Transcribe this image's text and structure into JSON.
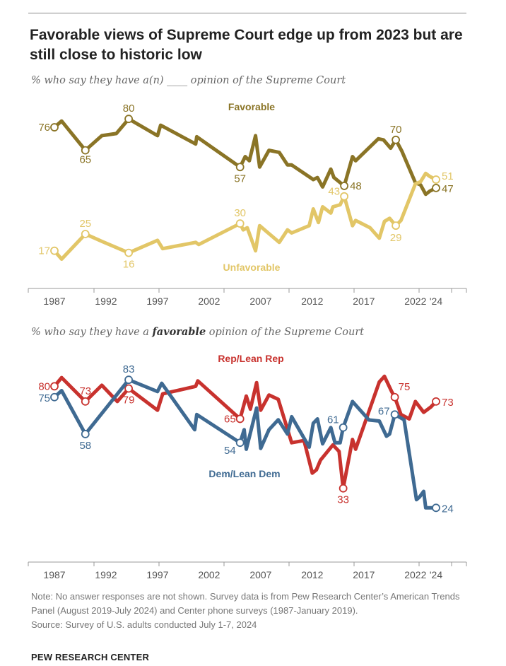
{
  "title": "Favorable views of Supreme Court edge up from 2023 but are still close to historic low",
  "footer": {
    "note": "Note: No answer responses are not shown. Survey data is from Pew Research Center’s American Trends Panel (August 2019-July 2024) and Center phone surveys (1987-January 2019).",
    "source": "Source: Survey of U.S. adults conducted July 1-7, 2024",
    "brand": "PEW RESEARCH CENTER"
  },
  "chart_data": [
    {
      "type": "line",
      "subtitle": "% who say they have a(n) ____ opinion of the Supreme Court",
      "x_ticks": [
        "1987",
        "1992",
        "1997",
        "2002",
        "2007",
        "2012",
        "2017",
        "2022",
        "'24"
      ],
      "x_tick_years": [
        1987,
        1992,
        1997,
        2002,
        2007,
        2012,
        2017,
        2022,
        2024
      ],
      "xlim": [
        1987,
        2024
      ],
      "ylim": [
        0,
        82
      ],
      "grid": false,
      "series": [
        {
          "name": "Favorable",
          "color": "#8a7426",
          "x": [
            1987,
            1987.7,
            1990,
            1991.6,
            1993,
            1994.2,
            1997,
            1997.3,
            2000.7,
            2000.8,
            2005,
            2005.3,
            2005.5,
            2005.9,
            2006.5,
            2006.9,
            2007.8,
            2008.8,
            2009.6,
            2010,
            2012.1,
            2012.5,
            2013,
            2013.8,
            2014.1,
            2015.1,
            2015.9,
            2016.2,
            2018.4,
            2018.9,
            2019.6,
            2020.1,
            2020.7,
            2022,
            2022.5,
            2023,
            2023.4,
            2024
          ],
          "y": [
            76,
            79,
            65,
            72,
            73,
            80,
            72,
            77,
            68,
            71.5,
            57,
            60,
            62,
            60,
            72,
            57,
            65,
            64,
            58,
            58,
            51,
            52,
            47.5,
            56,
            52,
            48,
            62,
            60,
            70.5,
            70,
            66,
            70,
            64.5,
            49.5,
            48.5,
            44,
            45.5,
            47
          ],
          "labels": [
            {
              "i": 0,
              "text": "76"
            },
            {
              "i": 2,
              "text": "65"
            },
            {
              "i": 5,
              "text": "80"
            },
            {
              "i": 10,
              "text": "57"
            },
            {
              "i": 25,
              "text": "48"
            },
            {
              "i": 31,
              "text": "70"
            },
            {
              "i": 37,
              "text": "47"
            }
          ]
        },
        {
          "name": "Unfavorable",
          "color": "#e2c667",
          "x": [
            1987,
            1987.7,
            1990,
            1991.6,
            1994.2,
            1997,
            1997.5,
            2000.7,
            2001,
            2005,
            2005.3,
            2005.7,
            2006.5,
            2006.9,
            2008.8,
            2009.6,
            2010,
            2011.7,
            2012.1,
            2012.6,
            2013,
            2013.8,
            2014,
            2014.7,
            2015.1,
            2015.9,
            2016.2,
            2017.6,
            2018.5,
            2019,
            2019.5,
            2020.1,
            2020.6,
            2022,
            2022.5,
            2023,
            2023.4,
            2024
          ],
          "y": [
            17,
            13,
            25,
            21.5,
            16,
            22,
            18,
            21,
            20,
            30,
            27,
            28,
            17,
            29,
            21,
            27,
            25.5,
            29,
            37,
            30.5,
            38,
            35,
            38,
            39,
            43,
            29,
            31.5,
            28,
            23,
            31,
            32.5,
            29,
            31.5,
            49,
            50,
            54,
            52.5,
            51
          ],
          "labels": [
            {
              "i": 0,
              "text": "17"
            },
            {
              "i": 2,
              "text": "25"
            },
            {
              "i": 4,
              "text": "16"
            },
            {
              "i": 9,
              "text": "30"
            },
            {
              "i": 24,
              "text": "43"
            },
            {
              "i": 31,
              "text": "29"
            },
            {
              "i": 37,
              "text": "51"
            }
          ]
        }
      ]
    },
    {
      "type": "line",
      "subtitle_pre": "% who say they have a ",
      "subtitle_bold": "favorable",
      "subtitle_post": " opinion of the Supreme Court",
      "x_ticks": [
        "1987",
        "1992",
        "1997",
        "2002",
        "2007",
        "2012",
        "2017",
        "2022",
        "'24"
      ],
      "x_tick_years": [
        1987,
        1992,
        1997,
        2002,
        2007,
        2012,
        2017,
        2022,
        2024
      ],
      "xlim": [
        1987,
        2024
      ],
      "ylim": [
        0,
        85
      ],
      "grid": false,
      "series": [
        {
          "name": "Rep/Lean Rep",
          "color": "#c8322e",
          "x": [
            1987,
            1987.7,
            1990,
            1991.6,
            1993.1,
            1994.2,
            1997,
            1997.5,
            2000.7,
            2000.9,
            2005,
            2005.6,
            2006,
            2006.6,
            2007,
            2007.8,
            2008.7,
            2010,
            2011.2,
            2012,
            2012.4,
            2012.8,
            2014,
            2014.6,
            2015,
            2015.9,
            2016.2,
            2018.5,
            2019,
            2019.7,
            2020,
            2020.6,
            2021.4,
            2022,
            2022.8,
            2023.5,
            2024
          ],
          "y": [
            80,
            84,
            73,
            80.5,
            73,
            79,
            69,
            76.5,
            80,
            82.5,
            65,
            75.5,
            69.5,
            81.7,
            69,
            76,
            74,
            54,
            55,
            40,
            41.5,
            46,
            53,
            50,
            33,
            55.5,
            51,
            82,
            84.6,
            77.6,
            75,
            67,
            65,
            73,
            68,
            70.5,
            73
          ],
          "labels": [
            {
              "i": 0,
              "text": "80"
            },
            {
              "i": 2,
              "text": "73"
            },
            {
              "i": 5,
              "text": "79"
            },
            {
              "i": 10,
              "text": "65"
            },
            {
              "i": 24,
              "text": "33"
            },
            {
              "i": 30,
              "text": "75"
            },
            {
              "i": 36,
              "text": "73"
            }
          ]
        },
        {
          "name": "Dem/Lean Dem",
          "color": "#3f6a92",
          "x": [
            1987,
            1987.7,
            1990,
            1994.2,
            1997,
            1997.4,
            2000.6,
            2000.8,
            2005,
            2005.4,
            2005.6,
            2006.6,
            2007,
            2007.8,
            2008.7,
            2009.6,
            2010,
            2011.7,
            2012.1,
            2012.5,
            2013,
            2013.8,
            2014.2,
            2014.7,
            2015,
            2015.9,
            2017.5,
            2018.5,
            2019.2,
            2019.5,
            2020,
            2020.9,
            2022.1,
            2022.4,
            2022.8,
            2023,
            2024
          ],
          "y": [
            75,
            78,
            58,
            83,
            77.6,
            81.4,
            60,
            67,
            54,
            60,
            51,
            70,
            51.4,
            60,
            64.6,
            58,
            66,
            52,
            63,
            65,
            53.5,
            61,
            54,
            54,
            61,
            73,
            64.5,
            64,
            57,
            58,
            67,
            64.6,
            27.8,
            29,
            31.6,
            24,
            24
          ],
          "labels": [
            {
              "i": 0,
              "text": "75"
            },
            {
              "i": 2,
              "text": "58"
            },
            {
              "i": 3,
              "text": "83"
            },
            {
              "i": 8,
              "text": "54"
            },
            {
              "i": 24,
              "text": "61"
            },
            {
              "i": 30,
              "text": "67"
            },
            {
              "i": 36,
              "text": "24"
            }
          ]
        }
      ]
    }
  ]
}
